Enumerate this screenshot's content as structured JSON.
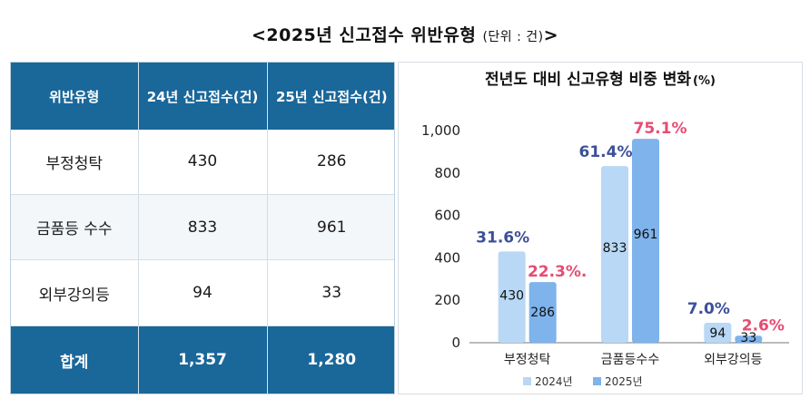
{
  "page": {
    "title": "<2025년  신고접수  위반유형",
    "unit": "(단위 : 건)",
    "title_close": ">"
  },
  "table": {
    "headers": [
      "위반유형",
      "24년 신고접수(건)",
      "25년 신고접수(건)"
    ],
    "rows": [
      [
        "부정청탁",
        "430",
        "286"
      ],
      [
        "금품등 수수",
        "833",
        "961"
      ],
      [
        "외부강의등",
        "94",
        "33"
      ]
    ],
    "total": [
      "합계",
      "1,357",
      "1,280"
    ]
  },
  "colors": {
    "header_bg": "#1a679a",
    "bar_2024": "#b8d8f5",
    "bar_2025": "#7eb3eb",
    "pct_2024": "#3d4f9a",
    "pct_2025": "#e64c72"
  },
  "chart_data": {
    "type": "bar",
    "title": "전년도 대비 신고유형 비중 변화",
    "title_unit": "(%)",
    "categories": [
      "부정청탁",
      "금품등수수",
      "외부강의등"
    ],
    "series": [
      {
        "name": "2024년",
        "values": [
          430,
          833,
          94
        ],
        "pct_labels": [
          "31.6%",
          "61.4%",
          "7.0%"
        ]
      },
      {
        "name": "2025년",
        "values": [
          286,
          961,
          33
        ],
        "pct_labels": [
          "22.3%.",
          "75.1%",
          "2.6%"
        ]
      }
    ],
    "yticks": [
      "0",
      "200",
      "400",
      "600",
      "800",
      "1,000"
    ],
    "ylim": [
      0,
      1000
    ],
    "grid": false,
    "legend_position": "bottom"
  }
}
